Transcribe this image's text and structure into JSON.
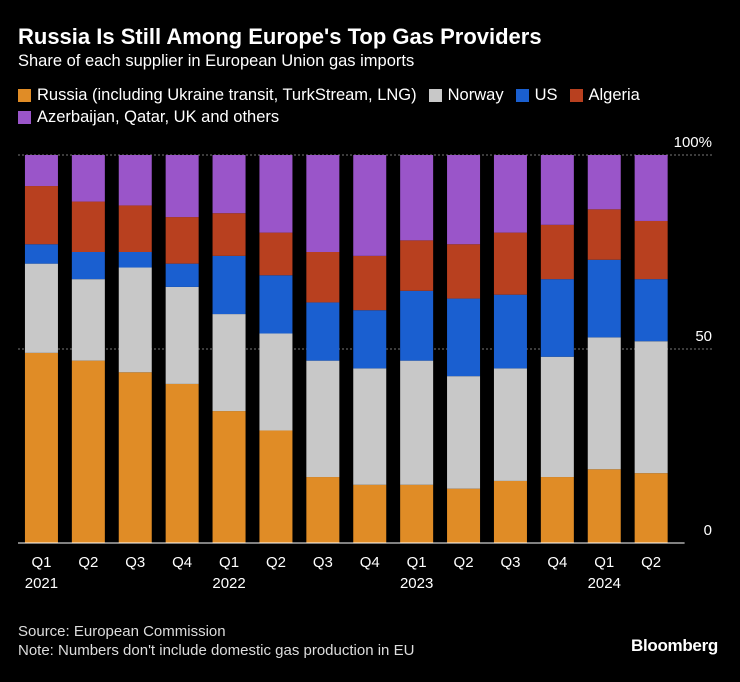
{
  "chart_data": {
    "type": "stacked_bar",
    "title": "Russia Is Still Among Europe's Top Gas Providers",
    "subtitle": "Share of each supplier in European Union gas imports",
    "categories": [
      [
        "Q1",
        "2021"
      ],
      [
        "Q2"
      ],
      [
        "Q3"
      ],
      [
        "Q4"
      ],
      [
        "Q1",
        "2022"
      ],
      [
        "Q2"
      ],
      [
        "Q3"
      ],
      [
        "Q4"
      ],
      [
        "Q1",
        "2023"
      ],
      [
        "Q2"
      ],
      [
        "Q3"
      ],
      [
        "Q4"
      ],
      [
        "Q1",
        "2024"
      ],
      [
        "Q2"
      ]
    ],
    "series": [
      {
        "name": "Russia (including Ukraine transit, TurkStream, LNG)",
        "color": "#e08c26",
        "values": [
          49,
          47,
          44,
          41,
          34,
          29,
          17,
          15,
          15,
          14,
          16,
          17,
          19,
          18
        ]
      },
      {
        "name": "Norway",
        "color": "#c8c8c8",
        "values": [
          23,
          21,
          27,
          25,
          25,
          25,
          30,
          30,
          32,
          29,
          29,
          31,
          34,
          34
        ]
      },
      {
        "name": "US",
        "color": "#1a5fd0",
        "values": [
          5,
          7,
          4,
          6,
          15,
          15,
          15,
          15,
          18,
          20,
          19,
          20,
          20,
          16
        ]
      },
      {
        "name": "Algeria",
        "color": "#b8401f",
        "values": [
          15,
          13,
          12,
          12,
          11,
          11,
          13,
          14,
          13,
          14,
          16,
          14,
          13,
          15
        ]
      },
      {
        "name": "Azerbaijan, Qatar, UK and others",
        "color": "#9a55c9",
        "values": [
          8,
          12,
          13,
          16,
          15,
          20,
          25,
          26,
          22,
          23,
          20,
          18,
          14,
          17
        ]
      }
    ],
    "ylim": [
      0,
      100
    ],
    "yticks": [
      0,
      50,
      {
        "value": 100,
        "label": "100%"
      }
    ],
    "grid": true,
    "source": "Source: European Commission",
    "note": "Note: Numbers don't include domestic gas production in EU",
    "brand": "Bloomberg"
  }
}
